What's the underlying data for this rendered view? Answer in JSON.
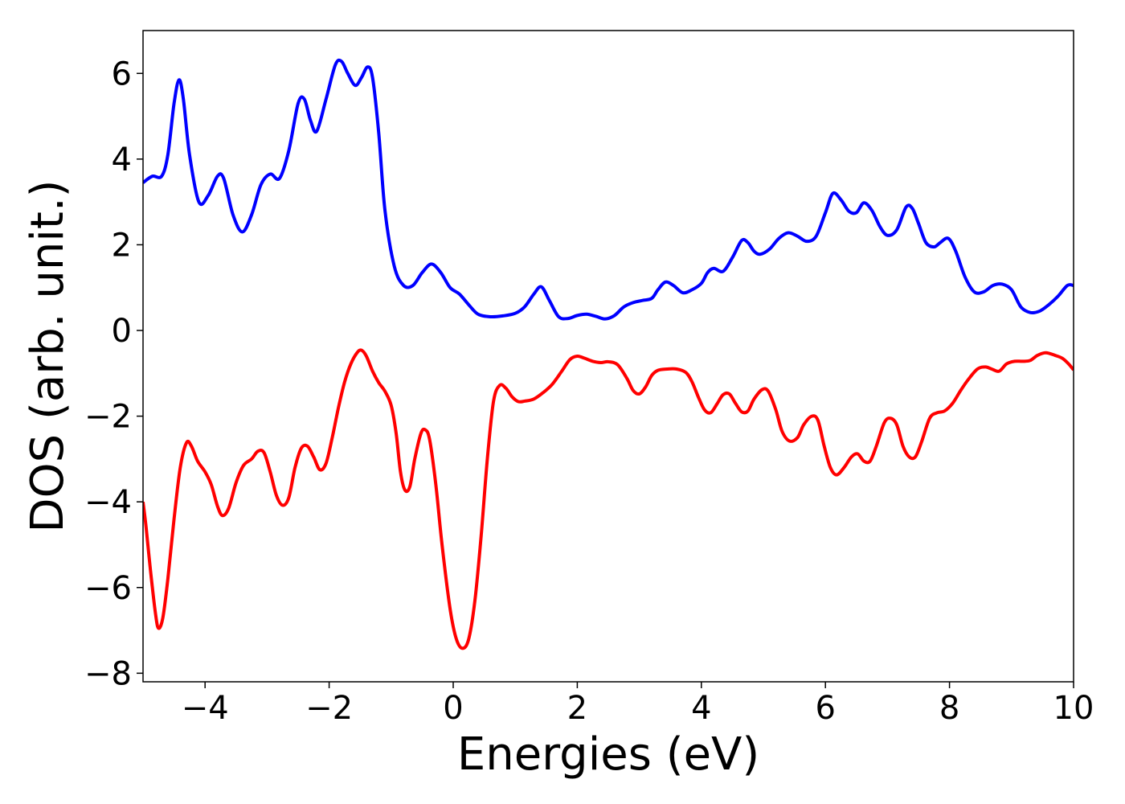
{
  "chart_data": {
    "type": "line",
    "title": "",
    "xlabel": "Energies (eV)",
    "ylabel": "DOS (arb. unit.)",
    "xlim": [
      -5,
      10
    ],
    "ylim": [
      -8.2,
      7.0
    ],
    "xticks": [
      -4,
      -2,
      0,
      2,
      4,
      6,
      8,
      10
    ],
    "xtick_labels": [
      "−4",
      "−2",
      "0",
      "2",
      "4",
      "6",
      "8",
      "10"
    ],
    "yticks": [
      -8,
      -6,
      -4,
      -2,
      0,
      2,
      4,
      6
    ],
    "ytick_labels": [
      "−8",
      "−6",
      "−4",
      "−2",
      "0",
      "2",
      "4",
      "6"
    ],
    "grid": false,
    "legend": "none",
    "series": [
      {
        "color": "#0000ff",
        "points": [
          [
            -5.0,
            3.45
          ],
          [
            -4.85,
            3.6
          ],
          [
            -4.7,
            3.6
          ],
          [
            -4.6,
            4.1
          ],
          [
            -4.5,
            5.3
          ],
          [
            -4.42,
            5.85
          ],
          [
            -4.35,
            5.4
          ],
          [
            -4.25,
            4.1
          ],
          [
            -4.1,
            3.0
          ],
          [
            -3.95,
            3.15
          ],
          [
            -3.8,
            3.6
          ],
          [
            -3.7,
            3.55
          ],
          [
            -3.55,
            2.7
          ],
          [
            -3.4,
            2.3
          ],
          [
            -3.25,
            2.7
          ],
          [
            -3.1,
            3.4
          ],
          [
            -2.95,
            3.65
          ],
          [
            -2.8,
            3.55
          ],
          [
            -2.65,
            4.2
          ],
          [
            -2.5,
            5.3
          ],
          [
            -2.4,
            5.4
          ],
          [
            -2.3,
            4.9
          ],
          [
            -2.2,
            4.65
          ],
          [
            -2.05,
            5.4
          ],
          [
            -1.9,
            6.2
          ],
          [
            -1.8,
            6.28
          ],
          [
            -1.7,
            6.0
          ],
          [
            -1.58,
            5.72
          ],
          [
            -1.48,
            5.9
          ],
          [
            -1.38,
            6.15
          ],
          [
            -1.3,
            5.9
          ],
          [
            -1.2,
            4.6
          ],
          [
            -1.1,
            2.8
          ],
          [
            -0.95,
            1.5
          ],
          [
            -0.8,
            1.05
          ],
          [
            -0.65,
            1.05
          ],
          [
            -0.5,
            1.35
          ],
          [
            -0.35,
            1.55
          ],
          [
            -0.2,
            1.35
          ],
          [
            -0.05,
            1.0
          ],
          [
            0.1,
            0.85
          ],
          [
            0.25,
            0.6
          ],
          [
            0.4,
            0.38
          ],
          [
            0.6,
            0.32
          ],
          [
            0.8,
            0.34
          ],
          [
            1.0,
            0.4
          ],
          [
            1.15,
            0.55
          ],
          [
            1.3,
            0.85
          ],
          [
            1.42,
            1.02
          ],
          [
            1.55,
            0.7
          ],
          [
            1.7,
            0.32
          ],
          [
            1.85,
            0.28
          ],
          [
            2.0,
            0.35
          ],
          [
            2.15,
            0.38
          ],
          [
            2.3,
            0.33
          ],
          [
            2.45,
            0.27
          ],
          [
            2.6,
            0.35
          ],
          [
            2.75,
            0.55
          ],
          [
            2.9,
            0.65
          ],
          [
            3.05,
            0.7
          ],
          [
            3.2,
            0.75
          ],
          [
            3.3,
            0.95
          ],
          [
            3.42,
            1.13
          ],
          [
            3.55,
            1.05
          ],
          [
            3.7,
            0.88
          ],
          [
            3.85,
            0.95
          ],
          [
            4.0,
            1.1
          ],
          [
            4.1,
            1.35
          ],
          [
            4.2,
            1.45
          ],
          [
            4.35,
            1.38
          ],
          [
            4.5,
            1.7
          ],
          [
            4.65,
            2.1
          ],
          [
            4.75,
            2.05
          ],
          [
            4.85,
            1.85
          ],
          [
            4.95,
            1.78
          ],
          [
            5.1,
            1.9
          ],
          [
            5.25,
            2.15
          ],
          [
            5.4,
            2.28
          ],
          [
            5.55,
            2.2
          ],
          [
            5.7,
            2.08
          ],
          [
            5.85,
            2.2
          ],
          [
            6.0,
            2.75
          ],
          [
            6.12,
            3.2
          ],
          [
            6.25,
            3.05
          ],
          [
            6.38,
            2.78
          ],
          [
            6.5,
            2.75
          ],
          [
            6.62,
            2.98
          ],
          [
            6.75,
            2.8
          ],
          [
            6.88,
            2.42
          ],
          [
            7.0,
            2.22
          ],
          [
            7.15,
            2.35
          ],
          [
            7.3,
            2.88
          ],
          [
            7.4,
            2.85
          ],
          [
            7.5,
            2.5
          ],
          [
            7.62,
            2.05
          ],
          [
            7.75,
            1.95
          ],
          [
            7.85,
            2.05
          ],
          [
            7.98,
            2.15
          ],
          [
            8.1,
            1.85
          ],
          [
            8.25,
            1.25
          ],
          [
            8.4,
            0.9
          ],
          [
            8.55,
            0.9
          ],
          [
            8.7,
            1.05
          ],
          [
            8.85,
            1.08
          ],
          [
            9.0,
            0.95
          ],
          [
            9.15,
            0.55
          ],
          [
            9.3,
            0.42
          ],
          [
            9.45,
            0.45
          ],
          [
            9.6,
            0.6
          ],
          [
            9.75,
            0.8
          ],
          [
            9.9,
            1.05
          ],
          [
            10.0,
            1.05
          ]
        ]
      },
      {
        "color": "#ff0000",
        "points": [
          [
            -5.0,
            -4.0
          ],
          [
            -4.95,
            -4.6
          ],
          [
            -4.88,
            -5.6
          ],
          [
            -4.8,
            -6.6
          ],
          [
            -4.75,
            -6.95
          ],
          [
            -4.68,
            -6.7
          ],
          [
            -4.6,
            -5.8
          ],
          [
            -4.5,
            -4.4
          ],
          [
            -4.4,
            -3.2
          ],
          [
            -4.3,
            -2.62
          ],
          [
            -4.22,
            -2.7
          ],
          [
            -4.12,
            -3.05
          ],
          [
            -4.0,
            -3.3
          ],
          [
            -3.9,
            -3.6
          ],
          [
            -3.8,
            -4.1
          ],
          [
            -3.72,
            -4.32
          ],
          [
            -3.62,
            -4.15
          ],
          [
            -3.5,
            -3.55
          ],
          [
            -3.38,
            -3.15
          ],
          [
            -3.25,
            -3.0
          ],
          [
            -3.15,
            -2.82
          ],
          [
            -3.05,
            -2.85
          ],
          [
            -2.95,
            -3.3
          ],
          [
            -2.85,
            -3.85
          ],
          [
            -2.75,
            -4.08
          ],
          [
            -2.65,
            -3.9
          ],
          [
            -2.55,
            -3.2
          ],
          [
            -2.45,
            -2.75
          ],
          [
            -2.35,
            -2.7
          ],
          [
            -2.25,
            -2.95
          ],
          [
            -2.15,
            -3.25
          ],
          [
            -2.05,
            -3.1
          ],
          [
            -1.95,
            -2.5
          ],
          [
            -1.85,
            -1.8
          ],
          [
            -1.75,
            -1.2
          ],
          [
            -1.65,
            -0.78
          ],
          [
            -1.55,
            -0.52
          ],
          [
            -1.48,
            -0.46
          ],
          [
            -1.4,
            -0.6
          ],
          [
            -1.3,
            -0.95
          ],
          [
            -1.2,
            -1.22
          ],
          [
            -1.1,
            -1.42
          ],
          [
            -1.0,
            -1.75
          ],
          [
            -0.92,
            -2.4
          ],
          [
            -0.85,
            -3.3
          ],
          [
            -0.78,
            -3.72
          ],
          [
            -0.7,
            -3.65
          ],
          [
            -0.62,
            -3.0
          ],
          [
            -0.52,
            -2.4
          ],
          [
            -0.45,
            -2.32
          ],
          [
            -0.38,
            -2.55
          ],
          [
            -0.28,
            -3.6
          ],
          [
            -0.18,
            -5.0
          ],
          [
            -0.05,
            -6.5
          ],
          [
            0.05,
            -7.2
          ],
          [
            0.15,
            -7.42
          ],
          [
            0.25,
            -7.2
          ],
          [
            0.35,
            -6.3
          ],
          [
            0.45,
            -4.8
          ],
          [
            0.55,
            -3.0
          ],
          [
            0.65,
            -1.65
          ],
          [
            0.75,
            -1.28
          ],
          [
            0.85,
            -1.35
          ],
          [
            0.95,
            -1.55
          ],
          [
            1.05,
            -1.66
          ],
          [
            1.15,
            -1.65
          ],
          [
            1.3,
            -1.6
          ],
          [
            1.45,
            -1.45
          ],
          [
            1.6,
            -1.25
          ],
          [
            1.75,
            -0.95
          ],
          [
            1.88,
            -0.68
          ],
          [
            2.0,
            -0.6
          ],
          [
            2.12,
            -0.65
          ],
          [
            2.25,
            -0.72
          ],
          [
            2.38,
            -0.75
          ],
          [
            2.5,
            -0.73
          ],
          [
            2.65,
            -0.8
          ],
          [
            2.8,
            -1.12
          ],
          [
            2.9,
            -1.4
          ],
          [
            3.0,
            -1.48
          ],
          [
            3.1,
            -1.32
          ],
          [
            3.2,
            -1.05
          ],
          [
            3.3,
            -0.93
          ],
          [
            3.45,
            -0.9
          ],
          [
            3.6,
            -0.9
          ],
          [
            3.75,
            -0.98
          ],
          [
            3.85,
            -1.2
          ],
          [
            3.95,
            -1.55
          ],
          [
            4.05,
            -1.85
          ],
          [
            4.15,
            -1.92
          ],
          [
            4.25,
            -1.72
          ],
          [
            4.35,
            -1.5
          ],
          [
            4.45,
            -1.48
          ],
          [
            4.55,
            -1.7
          ],
          [
            4.65,
            -1.9
          ],
          [
            4.75,
            -1.88
          ],
          [
            4.85,
            -1.6
          ],
          [
            4.98,
            -1.38
          ],
          [
            5.08,
            -1.42
          ],
          [
            5.2,
            -1.85
          ],
          [
            5.3,
            -2.35
          ],
          [
            5.42,
            -2.58
          ],
          [
            5.55,
            -2.5
          ],
          [
            5.65,
            -2.2
          ],
          [
            5.78,
            -2.0
          ],
          [
            5.88,
            -2.1
          ],
          [
            5.98,
            -2.7
          ],
          [
            6.08,
            -3.2
          ],
          [
            6.18,
            -3.37
          ],
          [
            6.3,
            -3.2
          ],
          [
            6.42,
            -2.95
          ],
          [
            6.52,
            -2.88
          ],
          [
            6.62,
            -3.05
          ],
          [
            6.72,
            -3.05
          ],
          [
            6.82,
            -2.7
          ],
          [
            6.95,
            -2.15
          ],
          [
            7.05,
            -2.05
          ],
          [
            7.15,
            -2.2
          ],
          [
            7.25,
            -2.7
          ],
          [
            7.35,
            -2.95
          ],
          [
            7.45,
            -2.95
          ],
          [
            7.55,
            -2.6
          ],
          [
            7.68,
            -2.05
          ],
          [
            7.8,
            -1.92
          ],
          [
            7.92,
            -1.88
          ],
          [
            8.05,
            -1.7
          ],
          [
            8.18,
            -1.4
          ],
          [
            8.3,
            -1.15
          ],
          [
            8.45,
            -0.9
          ],
          [
            8.58,
            -0.85
          ],
          [
            8.68,
            -0.9
          ],
          [
            8.8,
            -0.95
          ],
          [
            8.92,
            -0.78
          ],
          [
            9.05,
            -0.72
          ],
          [
            9.18,
            -0.72
          ],
          [
            9.3,
            -0.7
          ],
          [
            9.42,
            -0.58
          ],
          [
            9.55,
            -0.52
          ],
          [
            9.7,
            -0.58
          ],
          [
            9.82,
            -0.65
          ],
          [
            9.92,
            -0.78
          ],
          [
            10.0,
            -0.92
          ]
        ]
      }
    ]
  }
}
